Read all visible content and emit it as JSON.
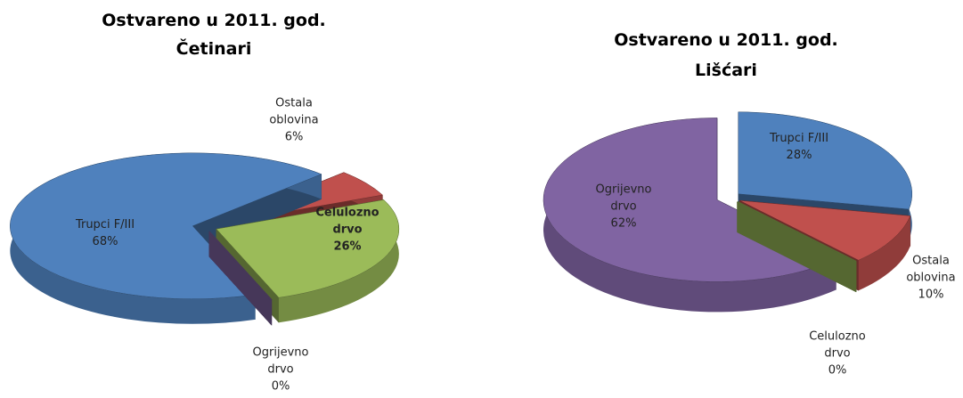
{
  "chart_data": [
    {
      "type": "pie",
      "title": "Ostvareno u 2011. god.",
      "subtitle": "Četinari",
      "categories": [
        "Trupci F/III",
        "Ostala oblovina",
        "Celulozno drvo",
        "Ogrijevno drvo"
      ],
      "values": [
        68,
        6,
        26,
        0
      ],
      "value_labels": [
        "68%",
        "6%",
        "26%",
        "0%"
      ],
      "colors": [
        "#4f81bd",
        "#c0504d",
        "#9bbb59",
        "#8064a2"
      ]
    },
    {
      "type": "pie",
      "title": "Ostvareno u 2011. god.",
      "subtitle": "Lišćari",
      "categories": [
        "Trupci F/III",
        "Ostala oblovina",
        "Celulozno drvo",
        "Ogrijevno drvo"
      ],
      "values": [
        28,
        10,
        0,
        62
      ],
      "value_labels": [
        "28%",
        "10%",
        "0%",
        "62%"
      ],
      "colors": [
        "#4f81bd",
        "#c0504d",
        "#9bbb59",
        "#8064a2"
      ]
    }
  ]
}
